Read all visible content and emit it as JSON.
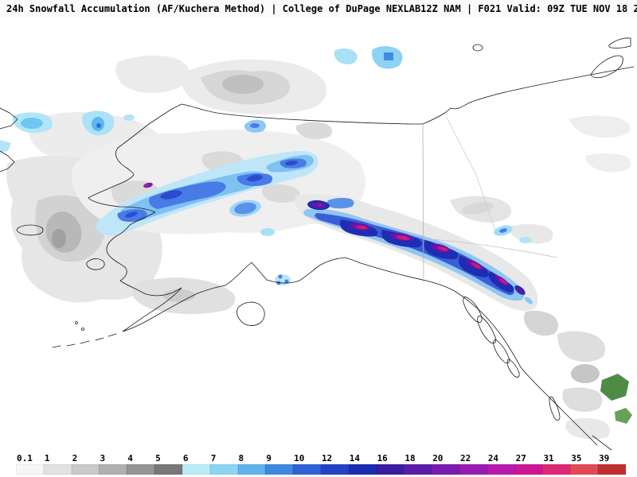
{
  "header": {
    "title": "24h Snowfall Accumulation (AF/Kuchera Method) | College of DuPage NEXLAB",
    "model_info": "12Z NAM | F021 Valid: 09Z TUE NOV 18 2025"
  },
  "legend": {
    "bins": [
      {
        "label": "0.1",
        "color": "#f7f7f7"
      },
      {
        "label": "1",
        "color": "#e2e2e2"
      },
      {
        "label": "2",
        "color": "#cacaca"
      },
      {
        "label": "3",
        "color": "#b0b0b0"
      },
      {
        "label": "4",
        "color": "#949494"
      },
      {
        "label": "5",
        "color": "#787878"
      },
      {
        "label": "6",
        "color": "#b8ecf8"
      },
      {
        "label": "7",
        "color": "#8cd4f2"
      },
      {
        "label": "8",
        "color": "#60b2ea"
      },
      {
        "label": "9",
        "color": "#3f88e0"
      },
      {
        "label": "10",
        "color": "#2f62d6"
      },
      {
        "label": "12",
        "color": "#2442c6"
      },
      {
        "label": "14",
        "color": "#1b2cb0"
      },
      {
        "label": "16",
        "color": "#3a1ca0"
      },
      {
        "label": "18",
        "color": "#5a1caa"
      },
      {
        "label": "20",
        "color": "#7a1bb2"
      },
      {
        "label": "22",
        "color": "#9a1ab4"
      },
      {
        "label": "24",
        "color": "#ba19b0"
      },
      {
        "label": "27",
        "color": "#cf1795"
      },
      {
        "label": "31",
        "color": "#dd2a74"
      },
      {
        "label": "35",
        "color": "#e14a55"
      },
      {
        "label": "39",
        "color": "#bf2f2f"
      }
    ]
  }
}
